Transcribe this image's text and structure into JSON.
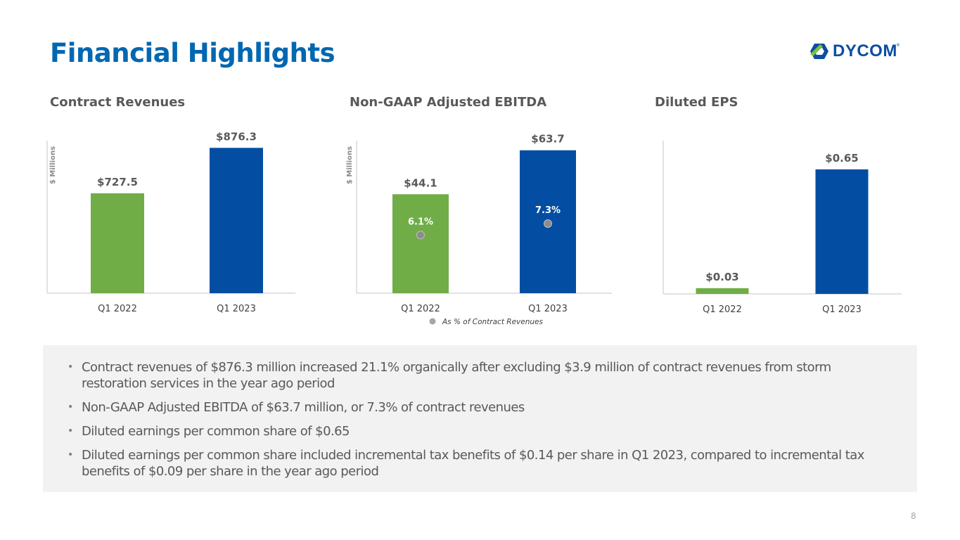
{
  "header": {
    "title": "Financial Highlights",
    "logo_text": "DYCOM",
    "logo_trademark": "®"
  },
  "colors": {
    "title_blue": "#0067b1",
    "bar_green": "#70ad47",
    "bar_blue": "#034ea2",
    "text_gray": "#595959",
    "axis_gray": "#d9d9d9",
    "marker_gray": "#8c8c8c",
    "summary_bg": "#f2f2f2"
  },
  "chart_data": [
    {
      "type": "bar",
      "title": "Contract Revenues",
      "ylabel": "$ Millions",
      "xlabel": "",
      "categories": [
        "Q1 2022",
        "Q1 2023"
      ],
      "values": [
        727.5,
        876.3
      ],
      "data_labels": [
        "$727.5",
        "$876.3"
      ],
      "bar_colors": [
        "#70ad47",
        "#034ea2"
      ],
      "ylim": [
        400,
        900
      ],
      "grid": false
    },
    {
      "type": "bar",
      "title": "Non-GAAP Adjusted EBITDA",
      "ylabel": "$ Millions",
      "xlabel": "",
      "categories": [
        "Q1 2022",
        "Q1 2023"
      ],
      "values": [
        44.1,
        63.7
      ],
      "data_labels": [
        "$44.1",
        "$63.7"
      ],
      "bar_colors": [
        "#70ad47",
        "#034ea2"
      ],
      "ylim": [
        0,
        68
      ],
      "grid": false,
      "secondary_series": {
        "name": "As % of Contract Revenues",
        "values": [
          6.1,
          7.3
        ],
        "data_labels": [
          "6.1%",
          "7.3%"
        ],
        "marker": "circle",
        "color": "#8c8c8c",
        "ylim": [
          0,
          16
        ]
      },
      "legend": {
        "entries": [
          "As % of Contract Revenues"
        ],
        "placement": "bottom"
      }
    },
    {
      "type": "bar",
      "title": "Diluted EPS",
      "ylabel": "",
      "xlabel": "",
      "categories": [
        "Q1 2022",
        "Q1 2023"
      ],
      "values": [
        0.03,
        0.65
      ],
      "data_labels": [
        "$0.03",
        "$0.65"
      ],
      "bar_colors": [
        "#70ad47",
        "#034ea2"
      ],
      "ylim": [
        0,
        0.8
      ],
      "grid": false
    }
  ],
  "summary": {
    "bullets": [
      "Contract revenues of $876.3 million increased 21.1% organically after excluding $3.9 million of contract revenues from storm restoration services in the year ago period",
      "Non-GAAP Adjusted EBITDA of $63.7 million, or 7.3% of contract revenues",
      "Diluted earnings per common share of $0.65",
      "Diluted earnings per common share included incremental tax benefits of $0.14 per share in Q1 2023, compared to incremental tax benefits of $0.09 per share in the year ago period"
    ]
  },
  "footer": {
    "page_number": "8"
  }
}
